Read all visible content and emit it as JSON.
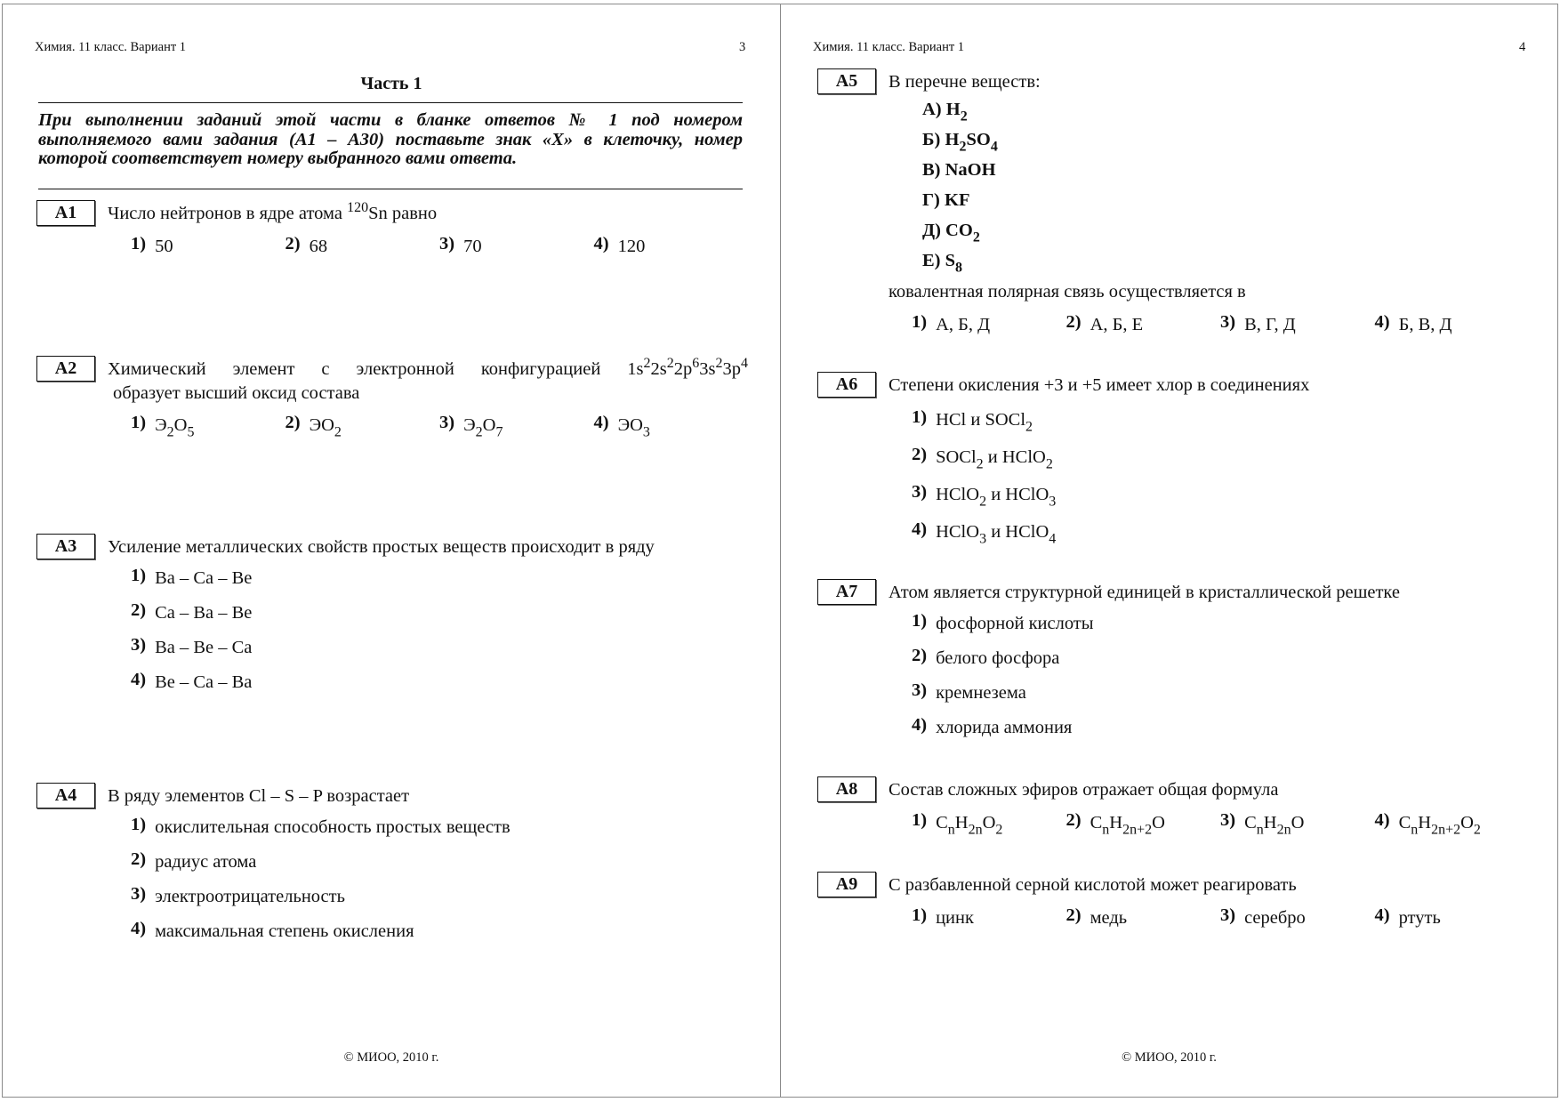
{
  "left_page": {
    "header": "Химия. 11 класс. Вариант 1",
    "page_number": "3",
    "part_title": "Часть 1",
    "instructions": "При выполнении заданий этой части в бланке ответов № 1 под номером выполняемого вами задания (А1 – А30) поставьте знак «Х» в клеточку, номер которой соответствует номеру выбранного вами ответа.",
    "footer": "© МИОО, 2010 г.",
    "questions": [
      {
        "id": "A1",
        "layout": "row",
        "text": [
          "Число нейтронов в ядре атома ",
          {
            "sup": "120"
          },
          "Sn  равно"
        ],
        "options": [
          {
            "n": "1)",
            "v": [
              "50"
            ]
          },
          {
            "n": "2)",
            "v": [
              "68"
            ]
          },
          {
            "n": "3)",
            "v": [
              "70"
            ]
          },
          {
            "n": "4)",
            "v": [
              "120"
            ]
          }
        ]
      },
      {
        "id": "A2",
        "layout": "row",
        "text": [
          "Химический элемент с электронной конфигурацией 1s",
          {
            "sup": "2"
          },
          "2s",
          {
            "sup": "2"
          },
          "2p",
          {
            "sup": "6"
          },
          "3s",
          {
            "sup": "2"
          },
          "3p",
          {
            "sup": "4"
          }
        ],
        "text2": [
          "образует высший оксид состава"
        ],
        "options": [
          {
            "n": "1)",
            "v": [
              "Э",
              {
                "sub": "2"
              },
              "O",
              {
                "sub": "5"
              }
            ]
          },
          {
            "n": "2)",
            "v": [
              "ЭO",
              {
                "sub": "2"
              }
            ]
          },
          {
            "n": "3)",
            "v": [
              "Э",
              {
                "sub": "2"
              },
              "O",
              {
                "sub": "7"
              }
            ]
          },
          {
            "n": "4)",
            "v": [
              "ЭO",
              {
                "sub": "3"
              }
            ]
          }
        ]
      },
      {
        "id": "A3",
        "layout": "column",
        "text": [
          "Усиление металлических свойств простых веществ происходит в ряду"
        ],
        "options": [
          {
            "n": "1)",
            "v": [
              "Ba – Ca – Be"
            ]
          },
          {
            "n": "2)",
            "v": [
              "Ca – Ba – Be"
            ]
          },
          {
            "n": "3)",
            "v": [
              "Ba – Be – Ca"
            ]
          },
          {
            "n": "4)",
            "v": [
              "Be – Ca – Ba"
            ]
          }
        ]
      },
      {
        "id": "A4",
        "layout": "column",
        "text": [
          "В ряду элементов Cl – S – P возрастает"
        ],
        "options": [
          {
            "n": "1)",
            "v": [
              "окислительная способность простых веществ"
            ]
          },
          {
            "n": "2)",
            "v": [
              "радиус атома"
            ]
          },
          {
            "n": "3)",
            "v": [
              "электроотрицательность"
            ]
          },
          {
            "n": "4)",
            "v": [
              "максимальная степень окисления"
            ]
          }
        ]
      }
    ]
  },
  "right_page": {
    "header": "Химия. 11 класс. Вариант 1",
    "page_number": "4",
    "footer": "© МИОО, 2010 г.",
    "questions": [
      {
        "id": "A5",
        "layout": "row",
        "text": [
          "В перечне веществ:"
        ],
        "items": [
          [
            "А) H",
            {
              "sub": "2"
            }
          ],
          [
            "Б) H",
            {
              "sub": "2"
            },
            "SO",
            {
              "sub": "4"
            }
          ],
          [
            "В) NaOH"
          ],
          [
            "Г) KF"
          ],
          [
            "Д) CO",
            {
              "sub": "2"
            }
          ],
          [
            "Е) S",
            {
              "sub": "8"
            }
          ]
        ],
        "text_after": [
          "ковалентная полярная связь осуществляется в"
        ],
        "options": [
          {
            "n": "1)",
            "v": [
              "А, Б, Д"
            ]
          },
          {
            "n": "2)",
            "v": [
              "А, Б, Е"
            ]
          },
          {
            "n": "3)",
            "v": [
              "В, Г, Д"
            ]
          },
          {
            "n": "4)",
            "v": [
              "Б, В, Д"
            ]
          }
        ]
      },
      {
        "id": "A6",
        "layout": "column6",
        "text": [
          "Степени окисления +3 и +5 имеет хлор в соединениях"
        ],
        "options": [
          {
            "n": "1)",
            "v": [
              "HCl и SOCl",
              {
                "sub": "2"
              }
            ]
          },
          {
            "n": "2)",
            "v": [
              "SOCl",
              {
                "sub": "2"
              },
              " и HClO",
              {
                "sub": "2"
              }
            ]
          },
          {
            "n": "3)",
            "v": [
              "HClO",
              {
                "sub": "2"
              },
              " и HClO",
              {
                "sub": "3"
              }
            ]
          },
          {
            "n": "4)",
            "v": [
              "HClO",
              {
                "sub": "3"
              },
              " и HClO",
              {
                "sub": "4"
              }
            ]
          }
        ]
      },
      {
        "id": "A7",
        "layout": "column",
        "text": [
          "Атом является структурной единицей в кристаллической решетке"
        ],
        "options": [
          {
            "n": "1)",
            "v": [
              "фосфорной кислоты"
            ]
          },
          {
            "n": "2)",
            "v": [
              "белого фосфора"
            ]
          },
          {
            "n": "3)",
            "v": [
              "кремнезема"
            ]
          },
          {
            "n": "4)",
            "v": [
              "хлорида аммония"
            ]
          }
        ]
      },
      {
        "id": "A8",
        "layout": "row",
        "text": [
          "Состав сложных эфиров отражает общая  формула"
        ],
        "options": [
          {
            "n": "1)",
            "v": [
              "C",
              {
                "sub": "n"
              },
              "H",
              {
                "sub": "2n"
              },
              "O",
              {
                "sub": "2"
              }
            ]
          },
          {
            "n": "2)",
            "v": [
              "C",
              {
                "sub": "n"
              },
              "H",
              {
                "sub": "2n+2"
              },
              "O"
            ]
          },
          {
            "n": "3)",
            "v": [
              "C",
              {
                "sub": "n"
              },
              "H",
              {
                "sub": "2n"
              },
              "O"
            ]
          },
          {
            "n": "4)",
            "v": [
              "C",
              {
                "sub": "n"
              },
              "H",
              {
                "sub": "2n+2"
              },
              "O",
              {
                "sub": "2"
              }
            ]
          }
        ]
      },
      {
        "id": "A9",
        "layout": "row",
        "text": [
          "С разбавленной серной кислотой может реагировать"
        ],
        "options": [
          {
            "n": "1)",
            "v": [
              "цинк"
            ]
          },
          {
            "n": "2)",
            "v": [
              "медь"
            ]
          },
          {
            "n": "3)",
            "v": [
              "серебро"
            ]
          },
          {
            "n": "4)",
            "v": [
              "ртуть"
            ]
          }
        ]
      }
    ]
  }
}
